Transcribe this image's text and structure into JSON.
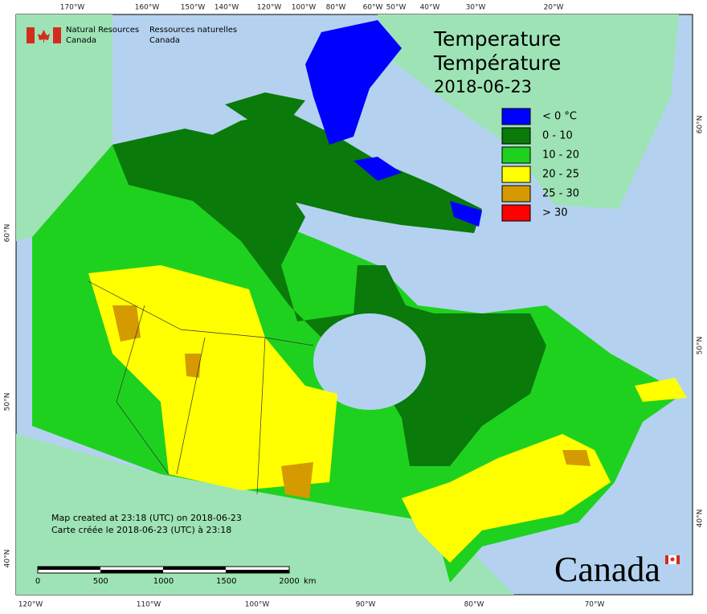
{
  "header": {
    "org_en_1": "Natural Resources",
    "org_en_2": "Canada",
    "org_fr_1": "Ressources naturelles",
    "org_fr_2": "Canada"
  },
  "title": {
    "en": "Temperature",
    "fr": "Température",
    "date": "2018-06-23"
  },
  "legend": [
    {
      "label": "< 0 °C",
      "color": "#0000ff"
    },
    {
      "label": "0 - 10",
      "color": "#0a7a0a"
    },
    {
      "label": "10 - 20",
      "color": "#1fd11f"
    },
    {
      "label": "20 - 25",
      "color": "#ffff00"
    },
    {
      "label": "25 - 30",
      "color": "#d49a00"
    },
    {
      "label": "> 30",
      "color": "#ff0000"
    }
  ],
  "graticule": {
    "top": [
      "170°W",
      "160°W",
      "150°W",
      "140°W",
      "120°W",
      "100°W",
      "80°W",
      "60°W",
      "50°W",
      "40°W",
      "30°W",
      "20°W"
    ],
    "bottom": [
      "120°W",
      "110°W",
      "100°W",
      "90°W",
      "80°W",
      "70°W"
    ],
    "left": [
      "60°N",
      "50°N",
      "40°N"
    ],
    "right": [
      "60°N",
      "50°N",
      "40°N"
    ]
  },
  "credit": [
    "Map created at 23:18 (UTC) on 2018-06-23",
    "Carte créée le 2018-06-23 (UTC) à 23:18"
  ],
  "scale": {
    "labels": [
      "0",
      "500",
      "1000",
      "1500",
      "2000"
    ],
    "unit": "km"
  },
  "wordmark": "Canada"
}
